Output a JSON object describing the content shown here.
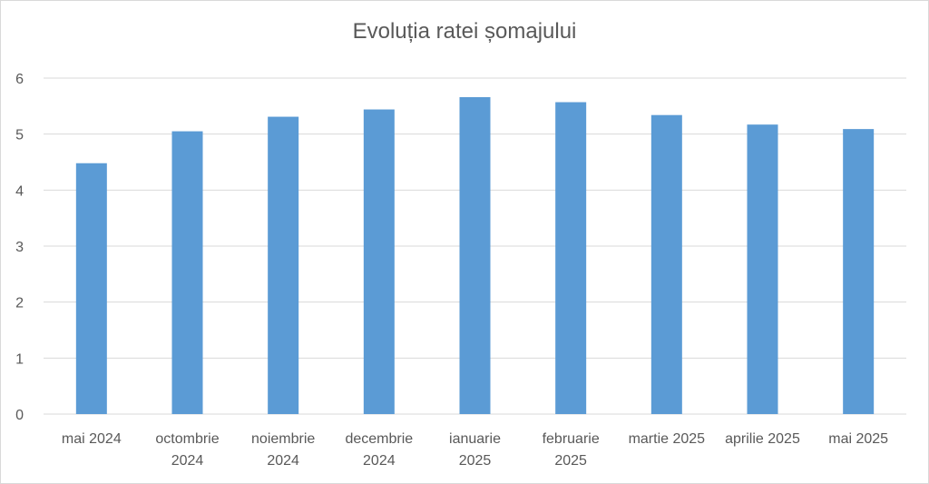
{
  "chart_data": {
    "type": "bar",
    "title": "Evoluția ratei șomajului",
    "categories": [
      [
        "mai 2024"
      ],
      [
        "octombrie",
        "2024"
      ],
      [
        "noiembrie",
        "2024"
      ],
      [
        "decembrie",
        "2024"
      ],
      [
        "ianuarie",
        "2025"
      ],
      [
        "februarie",
        "2025"
      ],
      [
        "martie 2025"
      ],
      [
        "aprilie 2025"
      ],
      [
        "mai 2025"
      ]
    ],
    "values": [
      4.48,
      5.05,
      5.31,
      5.44,
      5.66,
      5.57,
      5.34,
      5.17,
      5.09
    ],
    "yticks": [
      "0",
      "1",
      "2",
      "3",
      "4",
      "5",
      "6"
    ],
    "ylim": [
      0,
      6
    ],
    "grid": true,
    "colors": {
      "bar": "#5b9bd5",
      "grid": "#d9d9d9",
      "text": "#595959"
    }
  }
}
